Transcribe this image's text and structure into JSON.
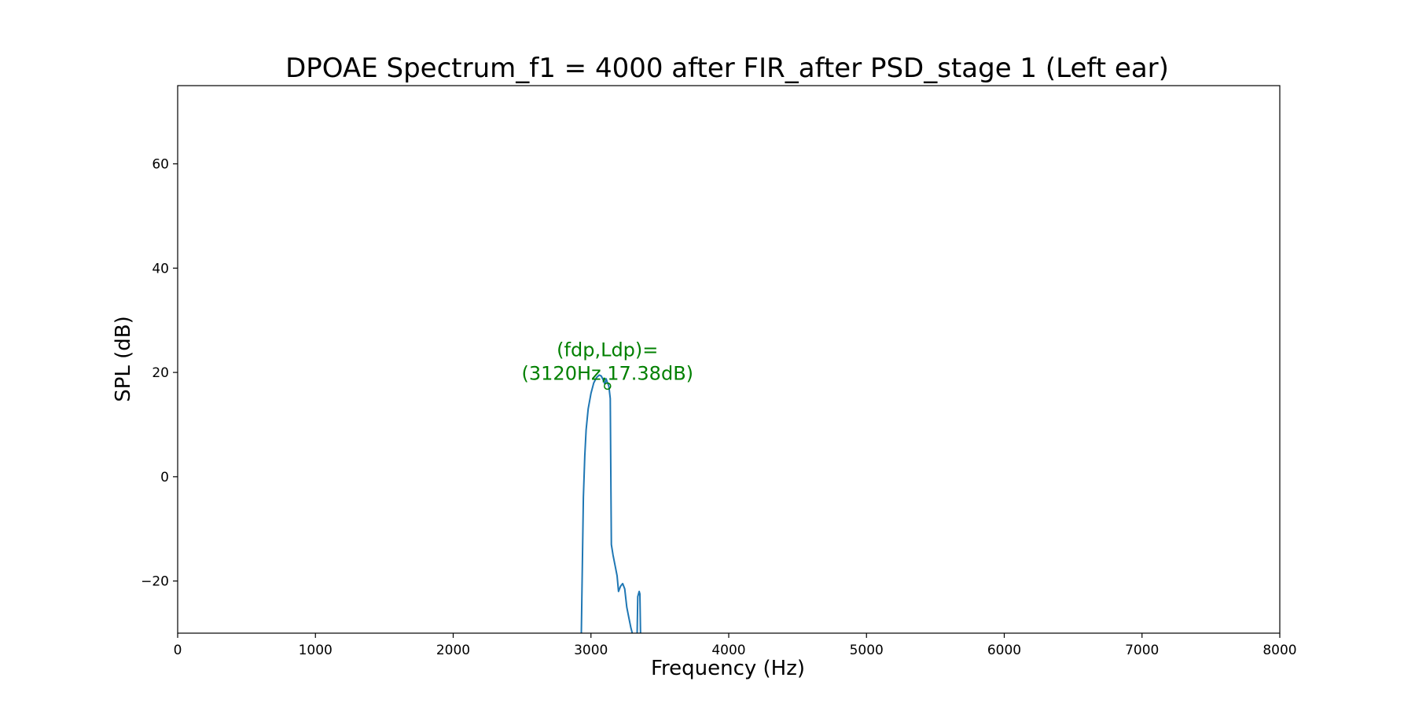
{
  "chart_data": {
    "type": "line",
    "title": "DPOAE Spectrum_f1 = 4000 after FIR_after PSD_stage 1 (Left ear)",
    "xlabel": "Frequency (Hz)",
    "ylabel": "SPL (dB)",
    "xlim": [
      0,
      8000
    ],
    "ylim": [
      -30,
      75
    ],
    "xticks": [
      0,
      1000,
      2000,
      3000,
      4000,
      5000,
      6000,
      7000,
      8000
    ],
    "xtick_labels": [
      "0",
      "1000",
      "2000",
      "3000",
      "4000",
      "5000",
      "6000",
      "7000",
      "8000"
    ],
    "yticks": [
      -20,
      0,
      20,
      40,
      60
    ],
    "ytick_labels": [
      "−20",
      "0",
      "20",
      "40",
      "60"
    ],
    "grid": false,
    "series_color": "#1f77b4",
    "annotation_color": "#008000",
    "series": [
      {
        "x": [
          2930,
          2945,
          2955,
          2965,
          2980,
          3000,
          3020,
          3040,
          3060,
          3075,
          3090,
          3100,
          3105,
          3110,
          3120,
          3130,
          3140,
          3148,
          3160,
          3175,
          3190,
          3200,
          3215,
          3230,
          3245,
          3260,
          3275,
          3290,
          3300
        ],
        "y": [
          -30,
          -4,
          4,
          9,
          13,
          16,
          18,
          19,
          19.5,
          19.3,
          18.5,
          17.8,
          18.2,
          18.8,
          18,
          17.4,
          15,
          -13,
          -15,
          -17,
          -19,
          -22,
          -21,
          -20.5,
          -21.5,
          -25,
          -27,
          -29,
          -30
        ]
      },
      {
        "x": [
          3335,
          3340,
          3350,
          3355,
          3360
        ],
        "y": [
          -30,
          -23,
          -22,
          -22.5,
          -30
        ]
      }
    ],
    "annotation": {
      "marker": {
        "x": 3120,
        "y": 17.38
      },
      "line1": "(fdp,Ldp)=",
      "line2": "(3120Hz,17.38dB)"
    }
  }
}
